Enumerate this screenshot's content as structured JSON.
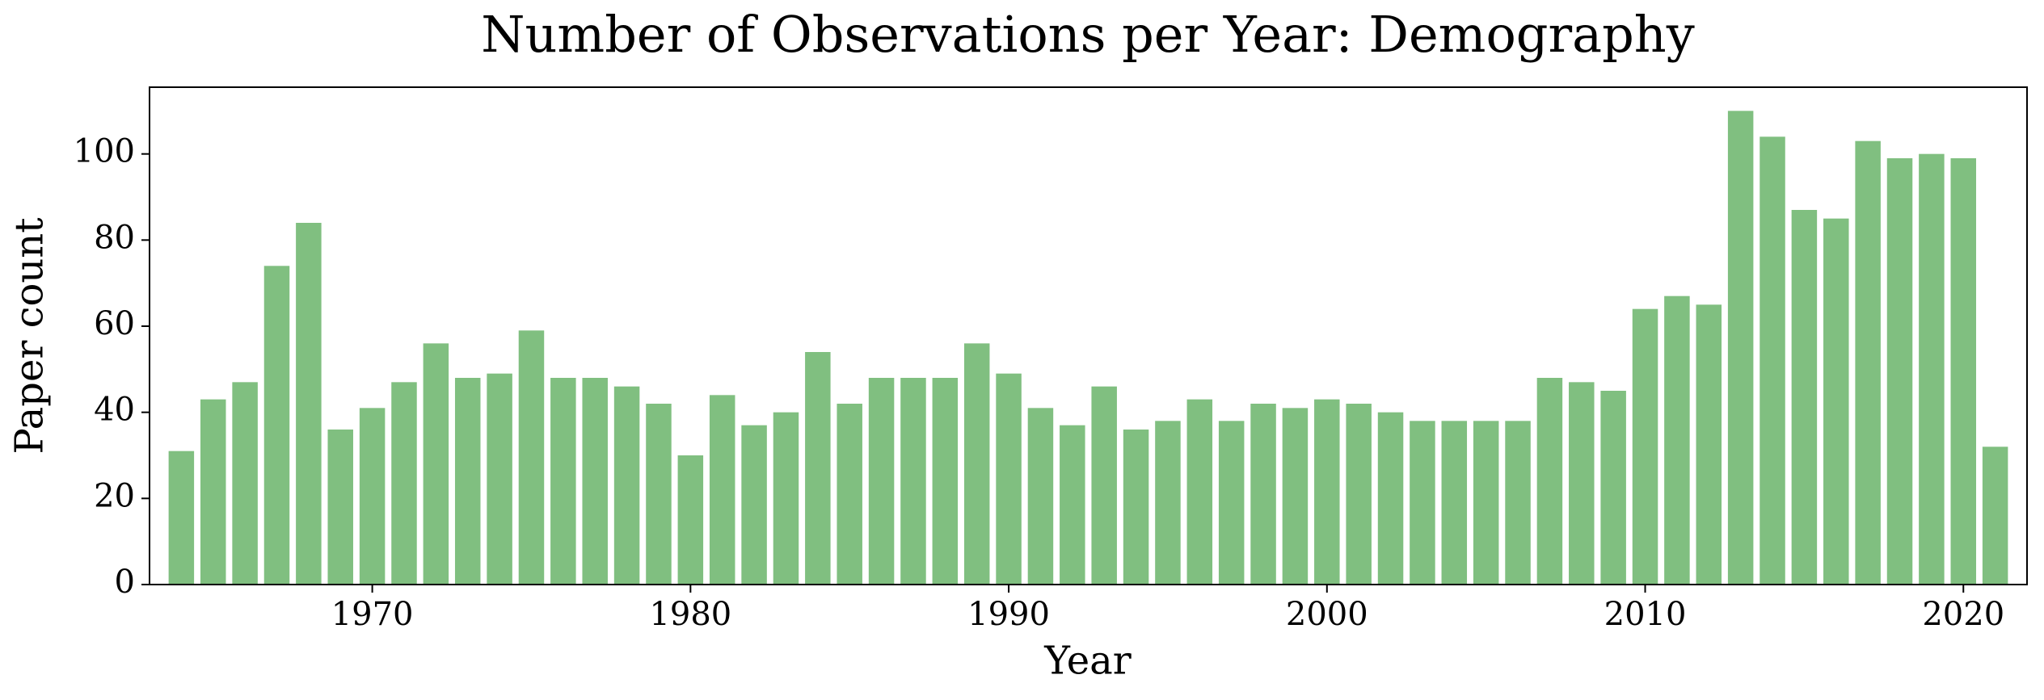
{
  "chart_data": {
    "type": "bar",
    "title": "Number of Observations per Year: Demography",
    "x_label": "Year",
    "y_label": "Paper count",
    "x": [
      1964,
      1965,
      1966,
      1967,
      1968,
      1969,
      1970,
      1971,
      1972,
      1973,
      1974,
      1975,
      1976,
      1977,
      1978,
      1979,
      1980,
      1981,
      1982,
      1983,
      1984,
      1985,
      1986,
      1987,
      1988,
      1989,
      1990,
      1991,
      1992,
      1993,
      1994,
      1995,
      1996,
      1997,
      1998,
      1999,
      2000,
      2001,
      2002,
      2003,
      2004,
      2005,
      2006,
      2007,
      2008,
      2009,
      2010,
      2011,
      2012,
      2013,
      2014,
      2015,
      2016,
      2017,
      2018,
      2019,
      2020,
      2021
    ],
    "values": [
      31,
      43,
      47,
      74,
      84,
      36,
      41,
      47,
      56,
      48,
      49,
      59,
      48,
      48,
      46,
      42,
      30,
      44,
      37,
      40,
      54,
      42,
      48,
      48,
      48,
      56,
      49,
      41,
      37,
      46,
      36,
      38,
      43,
      38,
      42,
      41,
      43,
      42,
      40,
      38,
      38,
      38,
      38,
      48,
      47,
      45,
      64,
      67,
      65,
      110,
      104,
      87,
      85,
      103,
      99,
      100,
      99,
      32
    ],
    "color": "#80bf80",
    "xlim": [
      1963,
      2022
    ],
    "xticks": [
      1970,
      1980,
      1990,
      2000,
      2010,
      2020
    ],
    "ylim": [
      0,
      115.5
    ],
    "yticks": [
      0,
      20,
      40,
      60,
      80,
      100
    ]
  }
}
